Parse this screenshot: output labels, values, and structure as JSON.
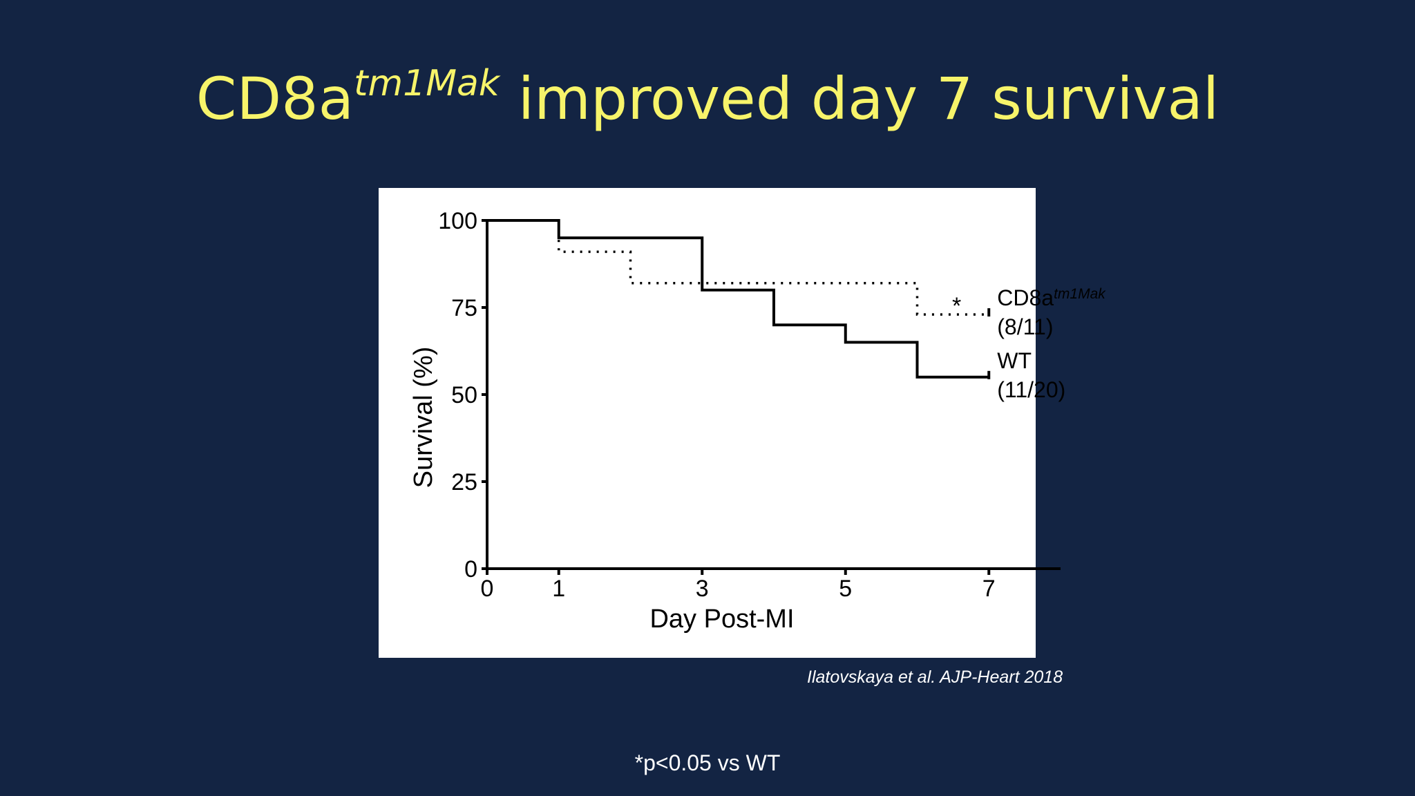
{
  "slide": {
    "title_main": "CD8a",
    "title_sup": "tm1Mak",
    "title_rest": " improved day 7 survival",
    "citation": "Ilatovskaya et al. AJP-Heart 2018",
    "footnote": "*p<0.05 vs WT",
    "background_color": "#132443",
    "title_color": "#f7f46a"
  },
  "chart_data": {
    "type": "line",
    "step": true,
    "xlabel": "Day Post-MI",
    "ylabel": "Survival (%)",
    "xlim": [
      0,
      8
    ],
    "ylim": [
      0,
      100
    ],
    "xticks": [
      0,
      1,
      3,
      5,
      7
    ],
    "yticks": [
      0,
      25,
      50,
      75,
      100
    ],
    "series": [
      {
        "name": "WT",
        "sup": "",
        "count": "(11/20)",
        "style": "solid",
        "x": [
          0,
          1,
          3,
          4,
          5,
          6,
          7
        ],
        "y": [
          100,
          95,
          80,
          70,
          65,
          55,
          55
        ]
      },
      {
        "name": "CD8a",
        "sup": "tm1Mak",
        "count": "(8/11)",
        "style": "dotted",
        "x": [
          0,
          1,
          2,
          6,
          7
        ],
        "y": [
          100,
          91,
          82,
          73,
          73
        ]
      }
    ],
    "annotations": [
      {
        "text": "*",
        "x": 6.55,
        "y": 76
      }
    ]
  }
}
